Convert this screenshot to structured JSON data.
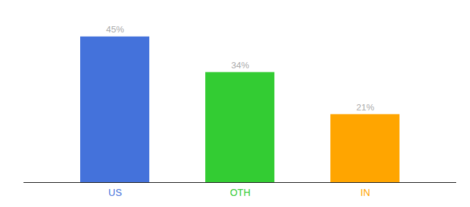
{
  "chart_data": {
    "type": "bar",
    "categories": [
      "US",
      "OTH",
      "IN"
    ],
    "values": [
      45,
      34,
      21
    ],
    "value_labels": [
      "45%",
      "34%",
      "21%"
    ],
    "data_labels": true,
    "colors": [
      "#4472db",
      "#33cc33",
      "#ffa500"
    ],
    "ylim": [
      0,
      52
    ],
    "tick_labels": "x"
  }
}
